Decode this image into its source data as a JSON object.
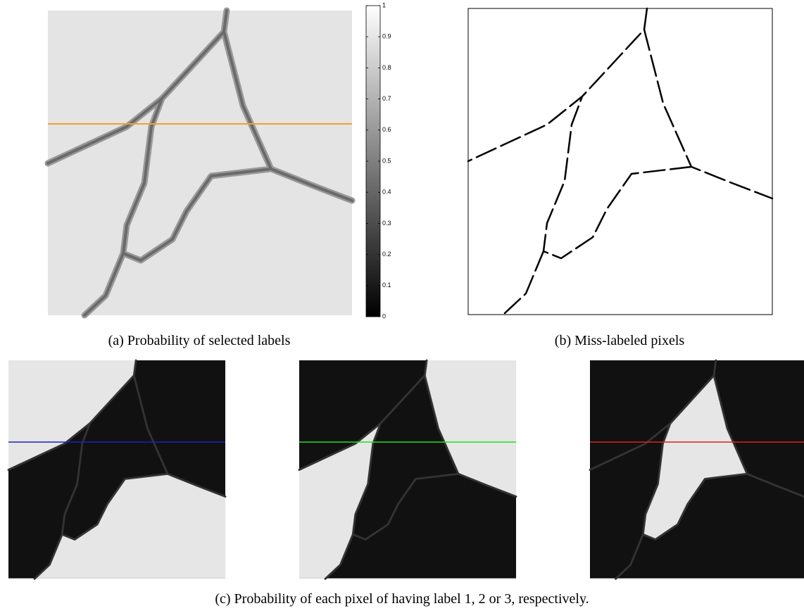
{
  "figure": {
    "panel_a": {
      "caption": "(a) Probability of selected labels"
    },
    "colorbar": {
      "lim": [
        0,
        1
      ],
      "ticks": [
        0,
        0.1,
        0.2,
        0.3,
        0.4,
        0.5,
        0.6,
        0.7,
        0.8,
        0.9,
        1
      ]
    },
    "panel_b": {
      "caption": "(b) Miss-labeled pixels"
    },
    "panel_c": {
      "caption": "(c) Probability of each pixel of having label 1, 2 or 3, respectively."
    }
  }
}
